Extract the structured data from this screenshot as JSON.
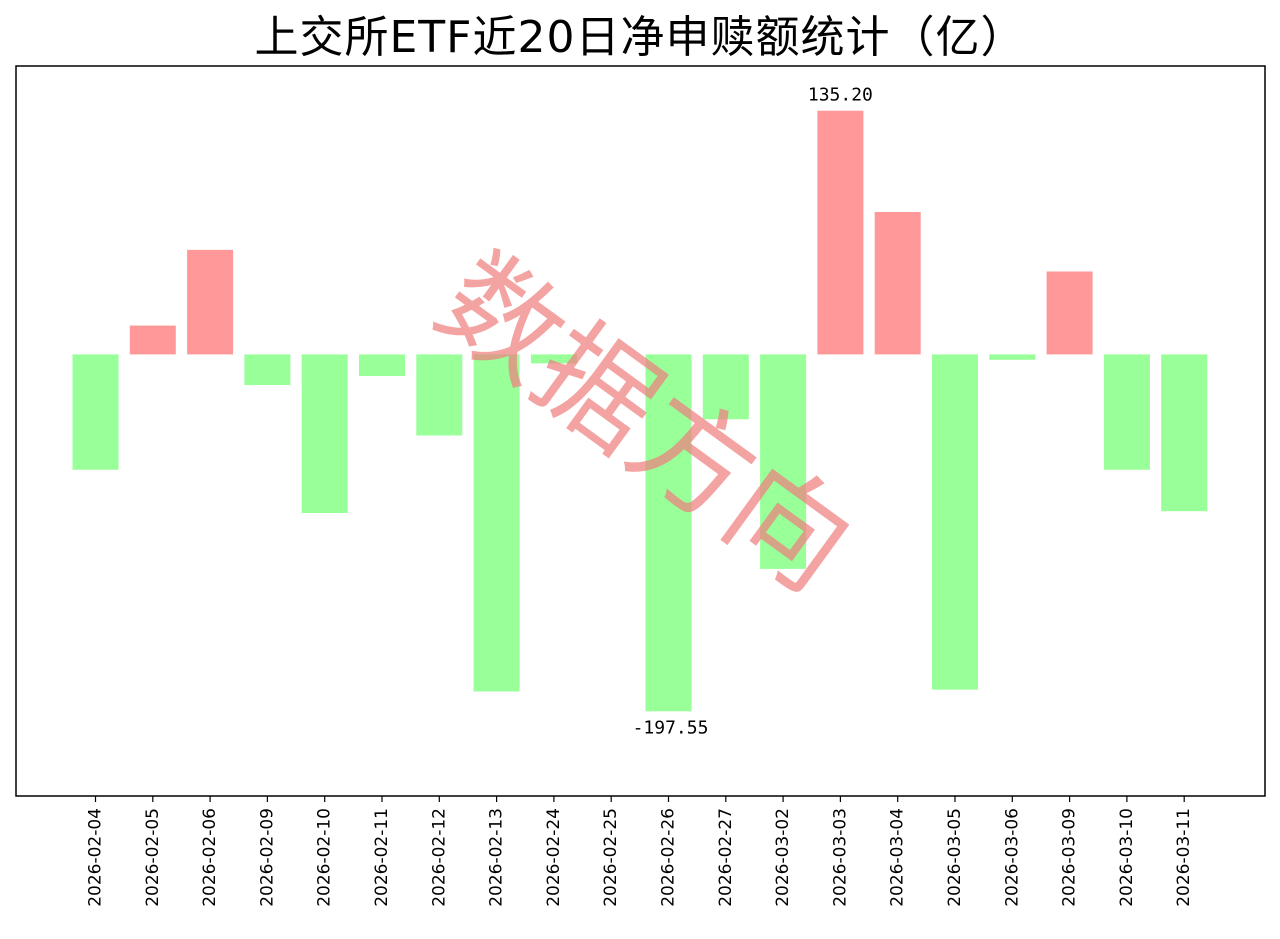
{
  "chart_data": {
    "type": "bar",
    "title": "上交所ETF近20日净申赎额统计（亿）",
    "xlabel": "",
    "ylabel": "",
    "categories": [
      "2026-02-04",
      "2026-02-05",
      "2026-02-06",
      "2026-02-09",
      "2026-02-10",
      "2026-02-11",
      "2026-02-12",
      "2026-02-13",
      "2026-02-24",
      "2026-02-25",
      "2026-02-26",
      "2026-02-27",
      "2026-03-02",
      "2026-03-03",
      "2026-03-04",
      "2026-03-05",
      "2026-03-06",
      "2026-03-09",
      "2026-03-10",
      "2026-03-11"
    ],
    "values": [
      -64,
      16,
      58,
      -17,
      -88,
      -12,
      -45,
      -187,
      -5,
      0,
      -198,
      -36,
      -119,
      135.2,
      79,
      -186,
      -3,
      46,
      -64,
      -87
    ],
    "ylim": [
      -245,
      160
    ],
    "data_labels": [
      {
        "category": "2026-03-03",
        "text": "135.20"
      },
      {
        "category": "2026-02-26",
        "text": "-197.55"
      }
    ],
    "positive_color": "#ff9999",
    "negative_color": "#99ff99",
    "grid": false,
    "watermark": "数据方向",
    "watermark_color": "#f08080"
  }
}
